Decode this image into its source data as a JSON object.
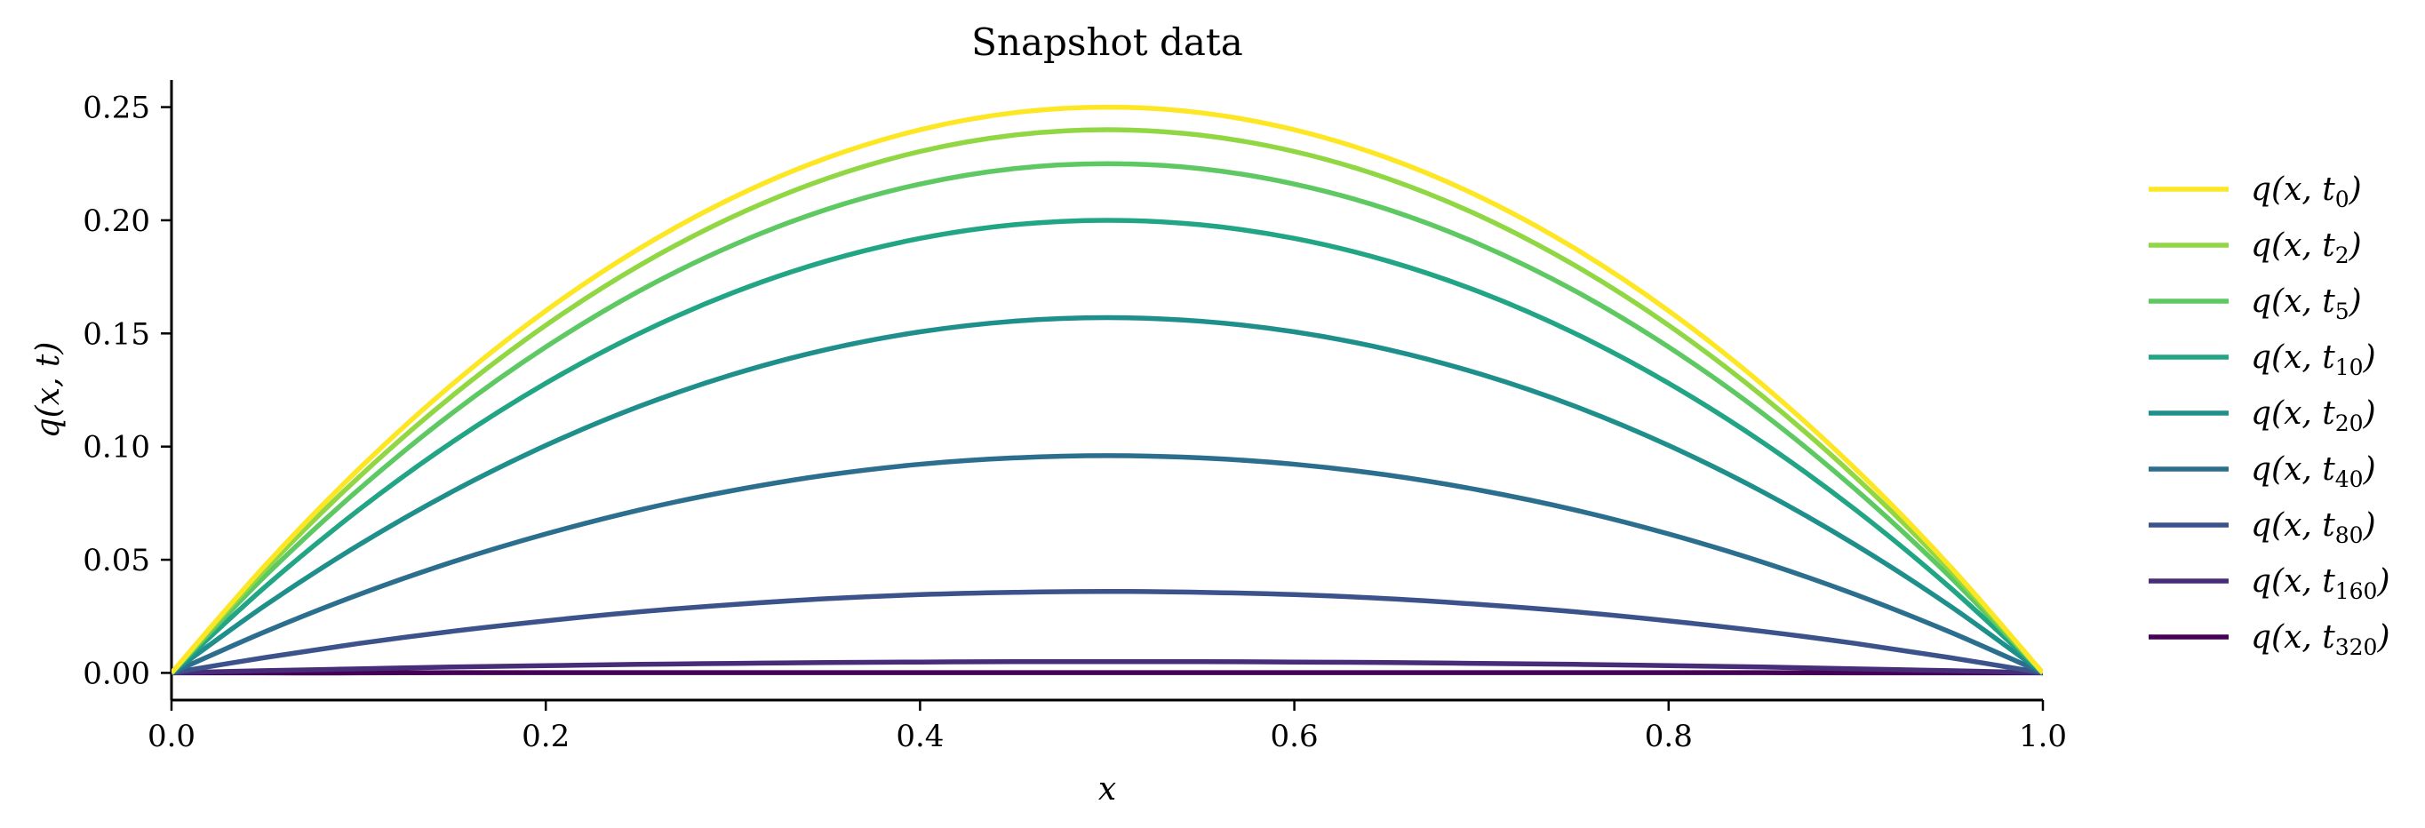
{
  "chart_data": {
    "type": "line",
    "title": "Snapshot data",
    "xlabel": "x",
    "ylabel": "q(x, t)",
    "xlim": [
      0.0,
      1.0
    ],
    "ylim": [
      -0.012,
      0.262
    ],
    "x_ticks": [
      0.0,
      0.2,
      0.4,
      0.6,
      0.8,
      1.0
    ],
    "x_tick_labels": [
      "0.0",
      "0.2",
      "0.4",
      "0.6",
      "0.8",
      "1.0"
    ],
    "y_ticks": [
      0.0,
      0.05,
      0.1,
      0.15,
      0.2,
      0.25
    ],
    "y_tick_labels": [
      "0.00",
      "0.05",
      "0.10",
      "0.15",
      "0.20",
      "0.25"
    ],
    "grid": false,
    "legend_position": "right",
    "x": [
      0.0,
      0.05,
      0.1,
      0.15,
      0.2,
      0.25,
      0.3,
      0.35,
      0.4,
      0.45,
      0.5,
      0.55,
      0.6,
      0.65,
      0.7,
      0.75,
      0.8,
      0.85,
      0.9,
      0.95,
      1.0
    ],
    "series": [
      {
        "name": "q(x, t0)",
        "sub": "0",
        "color": "#fde725",
        "values": [
          0.0,
          0.0475,
          0.09,
          0.1275,
          0.16,
          0.1875,
          0.21,
          0.2275,
          0.24,
          0.2475,
          0.25,
          0.2475,
          0.24,
          0.2275,
          0.21,
          0.1875,
          0.16,
          0.1275,
          0.09,
          0.0475,
          0.0
        ]
      },
      {
        "name": "q(x, t2)",
        "sub": "2",
        "color": "#90d743",
        "values": [
          0.0,
          0.0456,
          0.0864,
          0.1224,
          0.1536,
          0.18,
          0.2016,
          0.2184,
          0.2304,
          0.2376,
          0.24,
          0.2376,
          0.2304,
          0.2184,
          0.2016,
          0.18,
          0.1536,
          0.1224,
          0.0864,
          0.0456,
          0.0
        ]
      },
      {
        "name": "q(x, t5)",
        "sub": "5",
        "color": "#5ec962",
        "values": [
          0.0,
          0.0428,
          0.081,
          0.1148,
          0.144,
          0.1688,
          0.189,
          0.2048,
          0.216,
          0.2228,
          0.225,
          0.2228,
          0.216,
          0.2048,
          0.189,
          0.1688,
          0.144,
          0.1148,
          0.081,
          0.0428,
          0.0
        ]
      },
      {
        "name": "q(x, t10)",
        "sub": "10",
        "color": "#21a585",
        "values": [
          0.0,
          0.038,
          0.072,
          0.102,
          0.128,
          0.15,
          0.168,
          0.182,
          0.192,
          0.198,
          0.2,
          0.198,
          0.192,
          0.182,
          0.168,
          0.15,
          0.128,
          0.102,
          0.072,
          0.038,
          0.0
        ]
      },
      {
        "name": "q(x, t20)",
        "sub": "20",
        "color": "#1f8f8c",
        "values": [
          0.0,
          0.0298,
          0.0565,
          0.0801,
          0.1005,
          0.1178,
          0.1319,
          0.1429,
          0.1507,
          0.1554,
          0.157,
          0.1554,
          0.1507,
          0.1429,
          0.1319,
          0.1178,
          0.1005,
          0.0801,
          0.0565,
          0.0298,
          0.0
        ]
      },
      {
        "name": "q(x, t40)",
        "sub": "40",
        "color": "#2c6e8e",
        "values": [
          0.0,
          0.0182,
          0.0346,
          0.049,
          0.0614,
          0.072,
          0.0806,
          0.0874,
          0.0922,
          0.095,
          0.096,
          0.095,
          0.0922,
          0.0874,
          0.0806,
          0.072,
          0.0614,
          0.049,
          0.0346,
          0.0182,
          0.0
        ]
      },
      {
        "name": "q(x, t80)",
        "sub": "80",
        "color": "#3b528b",
        "values": [
          0.0,
          0.0068,
          0.013,
          0.0184,
          0.023,
          0.027,
          0.0302,
          0.0328,
          0.0346,
          0.0356,
          0.036,
          0.0356,
          0.0346,
          0.0328,
          0.0302,
          0.027,
          0.023,
          0.0184,
          0.013,
          0.0068,
          0.0
        ]
      },
      {
        "name": "q(x, t160)",
        "sub": "160",
        "color": "#472c7a",
        "values": [
          0.0,
          0.001,
          0.0018,
          0.0026,
          0.0032,
          0.0038,
          0.0042,
          0.0046,
          0.0048,
          0.005,
          0.005,
          0.005,
          0.0048,
          0.0046,
          0.0042,
          0.0038,
          0.0032,
          0.0026,
          0.0018,
          0.001,
          0.0
        ]
      },
      {
        "name": "q(x, t320)",
        "sub": "320",
        "color": "#440154",
        "values": [
          0.0,
          0.0,
          0.0,
          0.0001,
          0.0001,
          0.0001,
          0.0001,
          0.0001,
          0.0001,
          0.0001,
          0.0001,
          0.0001,
          0.0001,
          0.0001,
          0.0001,
          0.0001,
          0.0001,
          0.0001,
          0.0,
          0.0,
          0.0
        ]
      }
    ]
  }
}
